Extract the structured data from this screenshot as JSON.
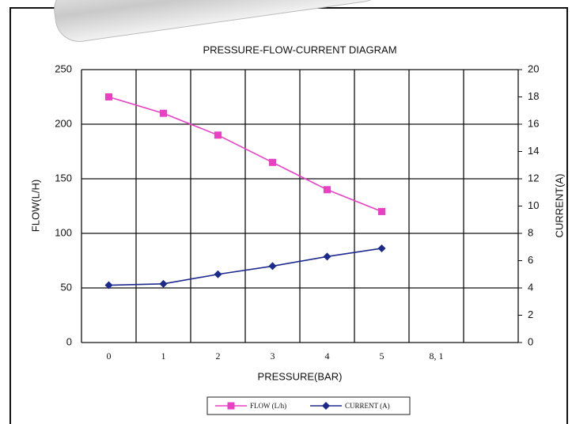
{
  "chart_data": {
    "type": "line",
    "title": "PRESSURE-FLOW-CURRENT DIAGRAM",
    "xlabel": "PRESSURE(BAR)",
    "ylabel": "FLOW(L/H)",
    "y2label": "CURRENT(A)",
    "categories": [
      "0",
      "1",
      "2",
      "3",
      "4",
      "5",
      "8, 1",
      null
    ],
    "series": [
      {
        "name": "FLOW (L/h)",
        "color": "#e940c4",
        "marker": "square",
        "values": [
          225,
          210,
          190,
          165,
          140,
          120,
          null,
          null
        ]
      },
      {
        "name": "CURRENT (A)",
        "color": "#1c2a8c",
        "marker": "diamond",
        "axis": "y2",
        "values": [
          4.2,
          4.3,
          5.0,
          5.6,
          6.3,
          6.9,
          null,
          null
        ]
      }
    ],
    "ylim": [
      0,
      250
    ],
    "yticks": [
      0,
      50,
      100,
      150,
      200,
      250
    ],
    "y2lim": [
      0,
      20
    ],
    "y2ticks": [
      0,
      2,
      4,
      6,
      8,
      10,
      12,
      14,
      16,
      18,
      20
    ],
    "grid": true,
    "legend": "bottom"
  }
}
